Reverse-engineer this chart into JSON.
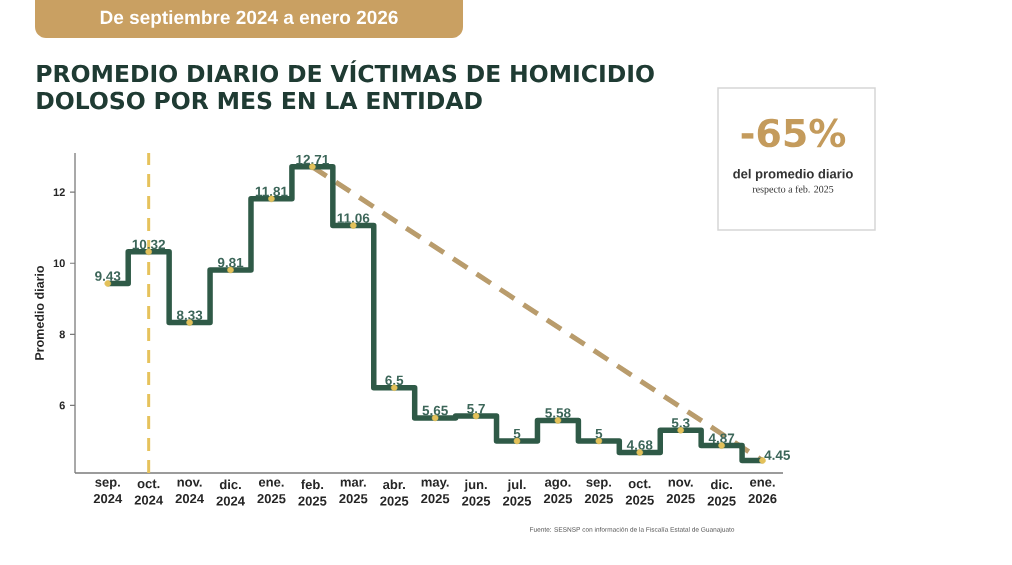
{
  "chart_data": {
    "type": "step",
    "title": "PROMEDIO DIARIO DE VÍCTIMAS DE HOMICIDIO DOLOSO POR MES EN LA ENTIDAD",
    "subtitle": "De septiembre 2024 a enero 2026",
    "ylabel": "Promedio diario",
    "categories": [
      "sep. 2024",
      "oct. 2024",
      "nov. 2024",
      "dic. 2024",
      "ene. 2025",
      "feb. 2025",
      "mar. 2025",
      "abr. 2025",
      "may. 2025",
      "jun. 2025",
      "jul. 2025",
      "ago. 2025",
      "sep. 2025",
      "oct. 2025",
      "nov. 2025",
      "dic. 2025",
      "ene. 2026"
    ],
    "series": [
      {
        "color": "#2f5a47",
        "colors": [
          "#e3c15a",
          "#e3c15a",
          "#e3c15a",
          "#e3c15a",
          "#e3c15a",
          "#e3c15a",
          "#e3c15a",
          "#e3c15a",
          "#e3c15a",
          "#e3c15a",
          "#e3c15a",
          "#e3c15a",
          "#e3c15a",
          "#e3c15a",
          "#e3c15a",
          "#e3c15a",
          "#e3c15a"
        ],
        "marker": "circle",
        "data_labels": true,
        "values": [
          9.43,
          10.32,
          8.33,
          9.81,
          11.81,
          12.71,
          11.06,
          6.5,
          5.65,
          5.7,
          5,
          5.58,
          5,
          4.68,
          5.3,
          4.87,
          4.45
        ]
      },
      {
        "type": "line",
        "color": "#b99c6c",
        "line_style": "dashed",
        "x": [
          "feb. 2025",
          "ene. 2026"
        ],
        "values": [
          12.71,
          4.45
        ]
      }
    ],
    "ylim": [
      4.1,
      13.1
    ],
    "yticks": [
      6,
      8,
      10,
      12
    ],
    "ref_lines": [
      {
        "axis": "x",
        "value": "oct. 2024",
        "color": "#e6c25c",
        "line_style": "dashed"
      }
    ],
    "annotations": [
      "-65%",
      "del promedio diario",
      "respecto a feb. 2025",
      "Fuente: SESNSP con información de la Fiscalía Estatal de Guanajuato"
    ]
  }
}
